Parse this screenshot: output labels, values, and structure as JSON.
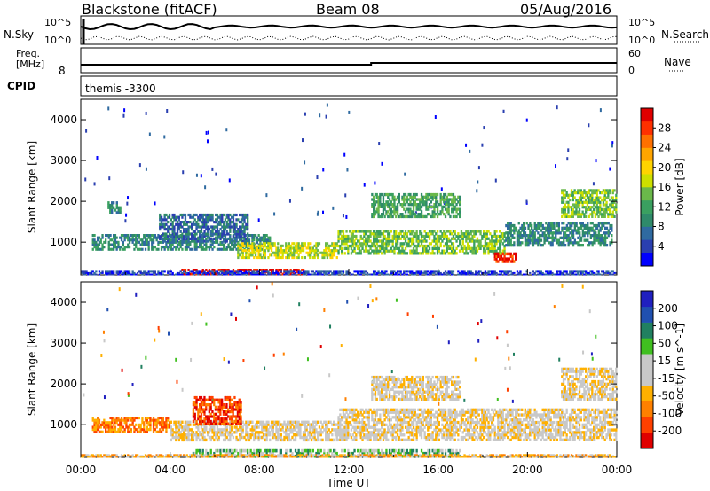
{
  "header": {
    "radar": "Blackstone (fitACF)",
    "beam": "Beam 08",
    "date": "05/Aug/2016"
  },
  "top_panels": {
    "nsky_label": "N.Sky",
    "nsearch_label": "N.Search",
    "nsky_hi": "10^5",
    "nsky_lo": "10^0",
    "nsearch_hi": "10^5",
    "nsearch_lo": "10^0",
    "freq_label_1": "Freq.",
    "freq_label_2": "[MHz]",
    "freq_tick": "8",
    "nave_label": "Nave",
    "nave_hi": "60",
    "nave_lo": "0",
    "cpid_label": "CPID",
    "cpid_value": "themis -3300"
  },
  "colors": {
    "power": [
      "#0000ff",
      "#2a3fb0",
      "#2f6aa0",
      "#2f8a6a",
      "#3aa060",
      "#6ab84a",
      "#cde000",
      "#ffd400",
      "#ffa500",
      "#ff7000",
      "#ff3000",
      "#e00000"
    ],
    "velocity": [
      "#e00000",
      "#ff4000",
      "#ff8000",
      "#ffb000",
      "#c8c8c8",
      "#c8c8c8",
      "#40c020",
      "#208060",
      "#2050b0",
      "#2020c0"
    ]
  },
  "chart_data": [
    {
      "type": "heatmap",
      "name": "Power",
      "ylabel": "Slant Range [km]",
      "ylim": [
        200,
        4500
      ],
      "yticks": [
        1000,
        2000,
        3000,
        4000
      ],
      "colorbar_label": "Power [dB]",
      "colorbar_ticks": [
        4,
        8,
        12,
        16,
        20,
        24,
        28
      ],
      "bands": [
        {
          "t0": 0.5,
          "t1": 8.5,
          "r0": 800,
          "r1": 1200,
          "level": 3
        },
        {
          "t0": 3.5,
          "t1": 7.5,
          "r0": 1000,
          "r1": 1700,
          "level": 2
        },
        {
          "t0": 1.2,
          "t1": 1.8,
          "r0": 1700,
          "r1": 2000,
          "level": 3
        },
        {
          "t0": 4.5,
          "t1": 10.0,
          "r0": 200,
          "r1": 350,
          "level": 11
        },
        {
          "t0": 7.0,
          "t1": 11.5,
          "r0": 600,
          "r1": 1000,
          "level": 6
        },
        {
          "t0": 11.5,
          "t1": 19.0,
          "r0": 700,
          "r1": 1300,
          "level": 5
        },
        {
          "t0": 13.0,
          "t1": 17.0,
          "r0": 1600,
          "r1": 2200,
          "level": 4
        },
        {
          "t0": 18.5,
          "t1": 19.5,
          "r0": 500,
          "r1": 750,
          "level": 10
        },
        {
          "t0": 19.0,
          "t1": 23.8,
          "r0": 900,
          "r1": 1500,
          "level": 3
        },
        {
          "t0": 21.5,
          "t1": 24.0,
          "r0": 1600,
          "r1": 2300,
          "level": 5
        },
        {
          "t0": 0.0,
          "t1": 24.0,
          "r0": 200,
          "r1": 300,
          "level": 1
        }
      ]
    },
    {
      "type": "heatmap",
      "name": "Velocity",
      "ylabel": "Slant Range [km]",
      "xlabel": "Time UT",
      "ylim": [
        200,
        4500
      ],
      "yticks": [
        1000,
        2000,
        3000,
        4000
      ],
      "xticks": [
        "00:00",
        "04:00",
        "08:00",
        "12:00",
        "16:00",
        "20:00",
        "00:00"
      ],
      "colorbar_label": "Velocity [m s^-1]",
      "colorbar_ticks": [
        200,
        100,
        50,
        15,
        -15,
        -50,
        -100,
        -200
      ],
      "bands": [
        {
          "t0": 0.5,
          "t1": 4.0,
          "r0": 800,
          "r1": 1200,
          "level": 2
        },
        {
          "t0": 4.0,
          "t1": 11.5,
          "r0": 600,
          "r1": 1100,
          "level": 4
        },
        {
          "t0": 5.0,
          "t1": 7.2,
          "r0": 1000,
          "r1": 1700,
          "level": 1
        },
        {
          "t0": 11.5,
          "t1": 24.0,
          "r0": 600,
          "r1": 1400,
          "level": 4
        },
        {
          "t0": 13.0,
          "t1": 17.0,
          "r0": 1600,
          "r1": 2200,
          "level": 4
        },
        {
          "t0": 21.5,
          "t1": 24.0,
          "r0": 1600,
          "r1": 2400,
          "level": 4
        },
        {
          "t0": 5.0,
          "t1": 17.0,
          "r0": 200,
          "r1": 400,
          "level": 6
        },
        {
          "t0": 0.0,
          "t1": 24.0,
          "r0": 200,
          "r1": 280,
          "level": 3
        }
      ]
    }
  ]
}
